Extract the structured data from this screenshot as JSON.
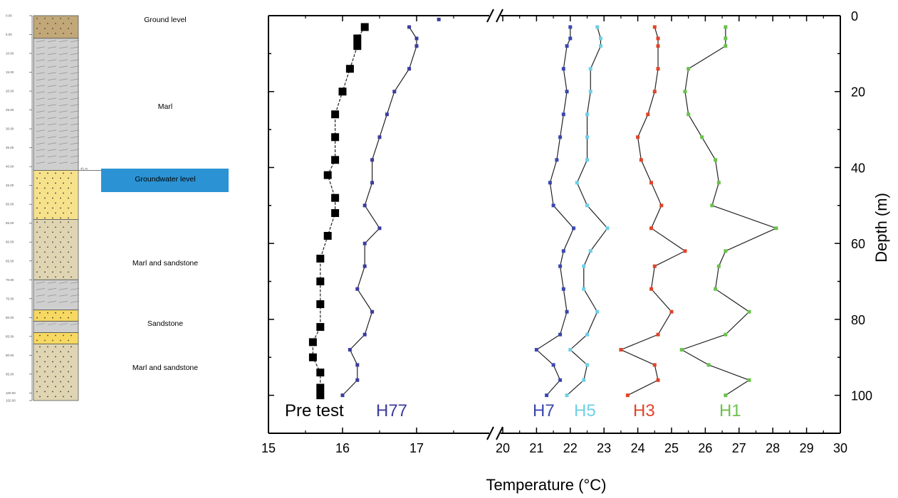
{
  "chart_data": {
    "type": "line",
    "xlabel": "Temperature (°C)",
    "ylabel": "Depth (m)",
    "xlim": [
      15,
      30
    ],
    "x_break": [
      17.5,
      20
    ],
    "ylim": [
      0,
      110
    ],
    "y_reversed": true,
    "x_ticks": [
      "15",
      "16",
      "17",
      "20",
      "21",
      "22",
      "23",
      "24",
      "25",
      "26",
      "27",
      "28",
      "29",
      "30"
    ],
    "y_ticks": [
      "0",
      "20",
      "40",
      "60",
      "80",
      "100"
    ],
    "grid": false,
    "series": [
      {
        "name": "Pre test",
        "color": "#000000",
        "marker": "square",
        "depth": [
          3,
          6,
          8,
          14,
          20,
          26,
          32,
          38,
          42,
          48,
          52,
          58,
          64,
          70,
          76,
          82,
          86,
          90,
          94,
          98,
          100
        ],
        "temp": [
          16.3,
          16.2,
          16.2,
          16.1,
          16.0,
          15.9,
          15.9,
          15.9,
          15.8,
          15.9,
          15.9,
          15.8,
          15.7,
          15.7,
          15.7,
          15.7,
          15.6,
          15.6,
          15.7,
          15.7,
          15.7
        ]
      },
      {
        "name": "H77",
        "color": "#3b3b9e",
        "marker": "dot",
        "depth": [
          3,
          6,
          8,
          14,
          20,
          26,
          32,
          38,
          44,
          50,
          56,
          60,
          66,
          72,
          78,
          84,
          88,
          92,
          96,
          100
        ],
        "temp": [
          16.9,
          17.0,
          17.0,
          16.9,
          16.7,
          16.6,
          16.5,
          16.4,
          16.4,
          16.3,
          16.5,
          16.3,
          16.3,
          16.2,
          16.4,
          16.3,
          16.1,
          16.2,
          16.2,
          16.0
        ]
      },
      {
        "name": "H7",
        "color": "#3a47b0",
        "marker": "dot",
        "depth": [
          3,
          6,
          8,
          14,
          20,
          26,
          32,
          38,
          44,
          50,
          56,
          62,
          66,
          72,
          78,
          84,
          88,
          92,
          96,
          100
        ],
        "temp": [
          22.0,
          22.0,
          21.9,
          21.8,
          21.9,
          21.8,
          21.7,
          21.6,
          21.4,
          21.5,
          22.1,
          21.8,
          21.7,
          21.8,
          21.9,
          21.7,
          21.0,
          21.5,
          21.7,
          21.3
        ]
      },
      {
        "name": "H5",
        "color": "#6fd0e6",
        "marker": "dot",
        "depth": [
          3,
          6,
          8,
          14,
          20,
          26,
          32,
          38,
          44,
          50,
          56,
          62,
          66,
          72,
          78,
          84,
          88,
          92,
          96,
          100
        ],
        "temp": [
          22.8,
          22.9,
          22.9,
          22.6,
          22.6,
          22.5,
          22.5,
          22.5,
          22.2,
          22.5,
          23.1,
          22.6,
          22.4,
          22.4,
          22.8,
          22.5,
          22.0,
          22.5,
          22.4,
          21.9
        ]
      },
      {
        "name": "H3",
        "color": "#e0442a",
        "marker": "dot",
        "depth": [
          3,
          6,
          8,
          14,
          20,
          26,
          32,
          38,
          44,
          50,
          56,
          62,
          66,
          72,
          78,
          84,
          88,
          92,
          96,
          100
        ],
        "temp": [
          24.5,
          24.6,
          24.6,
          24.6,
          24.5,
          24.3,
          24.0,
          24.1,
          24.4,
          24.7,
          24.4,
          25.4,
          24.5,
          24.4,
          25.0,
          24.6,
          23.5,
          24.5,
          24.6,
          23.7
        ]
      },
      {
        "name": "H1",
        "color": "#6ac24a",
        "marker": "dot",
        "depth": [
          3,
          6,
          8,
          14,
          20,
          26,
          32,
          38,
          44,
          50,
          56,
          62,
          66,
          72,
          78,
          84,
          88,
          92,
          96,
          100
        ],
        "temp": [
          26.6,
          26.6,
          26.6,
          25.5,
          25.4,
          25.5,
          25.9,
          26.3,
          26.4,
          26.2,
          28.1,
          26.6,
          26.4,
          26.3,
          27.3,
          26.6,
          25.3,
          26.1,
          27.3,
          26.6
        ]
      }
    ],
    "outlier_points": [
      {
        "series": "H77",
        "depth": 1,
        "temp": 17.3
      }
    ]
  },
  "lithology": {
    "depth_scale": [
      "0.00",
      "5.00",
      "10.00",
      "15.00",
      "20.00",
      "25.00",
      "30.00",
      "35.00",
      "40.00",
      "45.00",
      "50.00",
      "55.00",
      "60.00",
      "65.00",
      "70.00",
      "75.00",
      "80.00",
      "85.00",
      "90.00",
      "95.00",
      "100.00",
      "102.00"
    ],
    "marker_label": "41 m",
    "labels": [
      {
        "text": "Ground level",
        "depth": 0
      },
      {
        "text": "Marl",
        "depth": 25
      },
      {
        "text": "Groundwater level",
        "depth": 43.5
      },
      {
        "text": "Marl and sandstone",
        "depth": 63
      },
      {
        "text": "Sandstone",
        "depth": 80
      },
      {
        "text": "Marl and sandstone",
        "depth": 92
      }
    ],
    "layers": [
      {
        "type": "Ground level",
        "top": 0,
        "bottom": 6,
        "color": "#c2a878"
      },
      {
        "type": "Marl",
        "top": 6,
        "bottom": 41,
        "color": "#cfcfcf"
      },
      {
        "type": "Sand",
        "top": 41,
        "bottom": 54,
        "color": "#f7e28c"
      },
      {
        "type": "Marl and sandstone",
        "top": 54,
        "bottom": 70,
        "color": "#dfd5b2"
      },
      {
        "type": "Marl",
        "top": 70,
        "bottom": 78,
        "color": "#cfcfcf"
      },
      {
        "type": "Sandstone",
        "top": 78,
        "bottom": 81,
        "color": "#f7d860"
      },
      {
        "type": "Marl",
        "top": 81,
        "bottom": 84,
        "color": "#cfcfcf"
      },
      {
        "type": "Sandstone",
        "top": 84,
        "bottom": 87,
        "color": "#f7d860"
      },
      {
        "type": "Marl and sandstone",
        "top": 87,
        "bottom": 102,
        "color": "#dfd5b2"
      }
    ],
    "groundwater_color": "#2b93d4"
  }
}
